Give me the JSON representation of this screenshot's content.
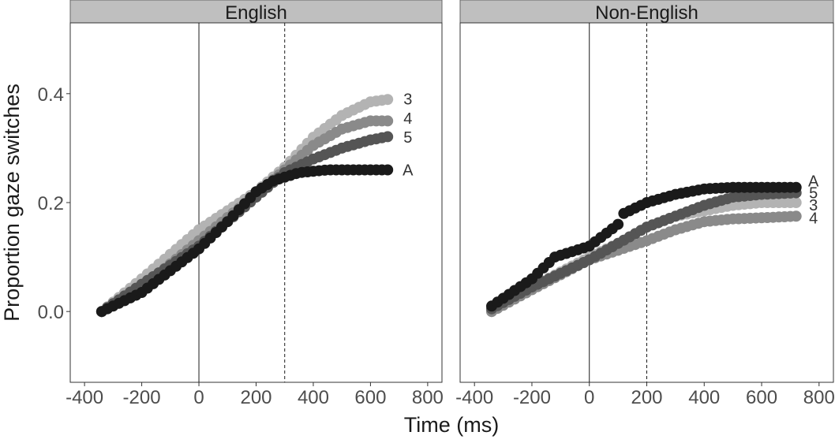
{
  "chart_data": {
    "type": "scatter",
    "ylabel": "Proportion gaze switches",
    "xlabel": "Time (ms)",
    "xlim": [
      -450,
      850
    ],
    "ylim": [
      -0.13,
      0.53
    ],
    "x_ticks": [
      -400,
      -200,
      0,
      200,
      400,
      600,
      800
    ],
    "x_tick_labels": [
      "-400",
      "-200",
      "0",
      "200",
      "400",
      "600",
      "800"
    ],
    "y_ticks": [
      0.0,
      0.2,
      0.4
    ],
    "y_tick_labels": [
      "0.0",
      "0.2",
      "0.4"
    ],
    "grid": false,
    "legend": "none (series labels at line ends)",
    "series_colors": {
      "3": "#b3b3b3",
      "4": "#8a8a8a",
      "5": "#555555",
      "A": "#1a1a1a"
    },
    "panels": [
      {
        "strip": "English",
        "solid_vline": 0,
        "dashed_vline": 300,
        "x_start": -340,
        "x_end": 670,
        "series": [
          {
            "name": "3",
            "knots": [
              [
                -340,
                0.0
              ],
              [
                -200,
                0.06
              ],
              [
                0,
                0.15
              ],
              [
                200,
                0.22
              ],
              [
                300,
                0.265
              ],
              [
                400,
                0.32
              ],
              [
                500,
                0.36
              ],
              [
                600,
                0.385
              ],
              [
                670,
                0.39
              ]
            ]
          },
          {
            "name": "4",
            "knots": [
              [
                -340,
                0.0
              ],
              [
                -200,
                0.045
              ],
              [
                0,
                0.13
              ],
              [
                200,
                0.215
              ],
              [
                300,
                0.26
              ],
              [
                400,
                0.305
              ],
              [
                500,
                0.335
              ],
              [
                600,
                0.35
              ],
              [
                670,
                0.35
              ]
            ]
          },
          {
            "name": "5",
            "knots": [
              [
                -340,
                0.0
              ],
              [
                -200,
                0.05
              ],
              [
                0,
                0.12
              ],
              [
                200,
                0.21
              ],
              [
                300,
                0.255
              ],
              [
                400,
                0.28
              ],
              [
                500,
                0.3
              ],
              [
                600,
                0.315
              ],
              [
                670,
                0.322
              ]
            ]
          },
          {
            "name": "A",
            "knots": [
              [
                -340,
                0.0
              ],
              [
                -200,
                0.035
              ],
              [
                0,
                0.115
              ],
              [
                100,
                0.165
              ],
              [
                200,
                0.22
              ],
              [
                260,
                0.24
              ],
              [
                350,
                0.255
              ],
              [
                450,
                0.26
              ],
              [
                670,
                0.26
              ]
            ]
          }
        ],
        "end_labels": [
          {
            "series": "3",
            "text": "3",
            "y": 0.39
          },
          {
            "series": "4",
            "text": "4",
            "y": 0.355
          },
          {
            "series": "5",
            "text": "5",
            "y": 0.32
          },
          {
            "series": "A",
            "text": "A",
            "y": 0.26
          }
        ]
      },
      {
        "strip": "Non-English",
        "solid_vline": 0,
        "dashed_vline": 200,
        "x_start": -340,
        "x_end": 720,
        "series": [
          {
            "name": "3",
            "knots": [
              [
                -340,
                0.0
              ],
              [
                -200,
                0.045
              ],
              [
                0,
                0.1
              ],
              [
                100,
                0.125
              ],
              [
                200,
                0.155
              ],
              [
                300,
                0.175
              ],
              [
                400,
                0.185
              ],
              [
                500,
                0.195
              ],
              [
                600,
                0.2
              ],
              [
                720,
                0.2
              ]
            ]
          },
          {
            "name": "4",
            "knots": [
              [
                -340,
                0.0
              ],
              [
                -200,
                0.04
              ],
              [
                0,
                0.095
              ],
              [
                200,
                0.13
              ],
              [
                300,
                0.15
              ],
              [
                400,
                0.165
              ],
              [
                500,
                0.17
              ],
              [
                600,
                0.172
              ],
              [
                720,
                0.175
              ]
            ]
          },
          {
            "name": "5",
            "knots": [
              [
                -340,
                0.005
              ],
              [
                -200,
                0.045
              ],
              [
                0,
                0.095
              ],
              [
                100,
                0.125
              ],
              [
                200,
                0.155
              ],
              [
                300,
                0.175
              ],
              [
                400,
                0.195
              ],
              [
                500,
                0.21
              ],
              [
                600,
                0.215
              ],
              [
                720,
                0.218
              ]
            ]
          },
          {
            "name": "A",
            "knots": [
              [
                -340,
                0.01
              ],
              [
                -200,
                0.06
              ],
              [
                -120,
                0.1
              ],
              [
                0,
                0.12
              ],
              [
                100,
                0.16
              ],
              [
                120,
                0.18
              ],
              [
                200,
                0.2
              ],
              [
                300,
                0.215
              ],
              [
                400,
                0.225
              ],
              [
                500,
                0.228
              ],
              [
                720,
                0.228
              ]
            ]
          }
        ],
        "end_labels": [
          {
            "series": "A",
            "text": "A",
            "y": 0.24
          },
          {
            "series": "5",
            "text": "5",
            "y": 0.218
          },
          {
            "series": "3",
            "text": "3",
            "y": 0.196
          },
          {
            "series": "4",
            "text": "4",
            "y": 0.172
          }
        ]
      }
    ]
  }
}
